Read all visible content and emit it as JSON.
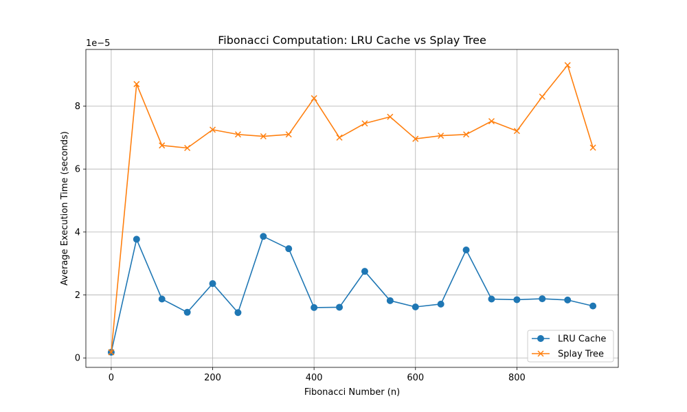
{
  "chart_data": {
    "type": "line",
    "title": "Fibonacci Computation: LRU Cache vs Splay Tree",
    "xlabel": "Fibonacci Number (n)",
    "ylabel": "Average Execution Time (seconds)",
    "y_offset_label": "1e−5",
    "x": [
      0,
      50,
      100,
      150,
      200,
      250,
      300,
      350,
      400,
      450,
      500,
      550,
      600,
      650,
      700,
      750,
      800,
      850,
      900,
      950
    ],
    "xlim": [
      -50,
      1000
    ],
    "ylim": [
      -0.3,
      9.8
    ],
    "y_unit_scale": 1e-05,
    "x_ticks": [
      0,
      200,
      400,
      600,
      800
    ],
    "y_ticks": [
      0,
      2,
      4,
      6,
      8
    ],
    "grid": true,
    "legend_position": "lower-right",
    "series": [
      {
        "name": "LRU Cache",
        "color": "#1f77b4",
        "marker": "circle",
        "values": [
          0.18,
          3.77,
          1.87,
          1.45,
          2.36,
          1.44,
          3.86,
          3.47,
          1.6,
          1.61,
          2.75,
          1.82,
          1.62,
          1.71,
          3.43,
          1.87,
          1.85,
          1.88,
          1.84,
          1.65
        ]
      },
      {
        "name": "Splay Tree",
        "color": "#ff7f0e",
        "marker": "x",
        "values": [
          0.18,
          8.7,
          6.75,
          6.67,
          7.25,
          7.1,
          7.04,
          7.1,
          8.25,
          7.0,
          7.45,
          7.66,
          6.96,
          7.06,
          7.1,
          7.52,
          7.21,
          8.3,
          9.3,
          6.68
        ]
      }
    ]
  }
}
